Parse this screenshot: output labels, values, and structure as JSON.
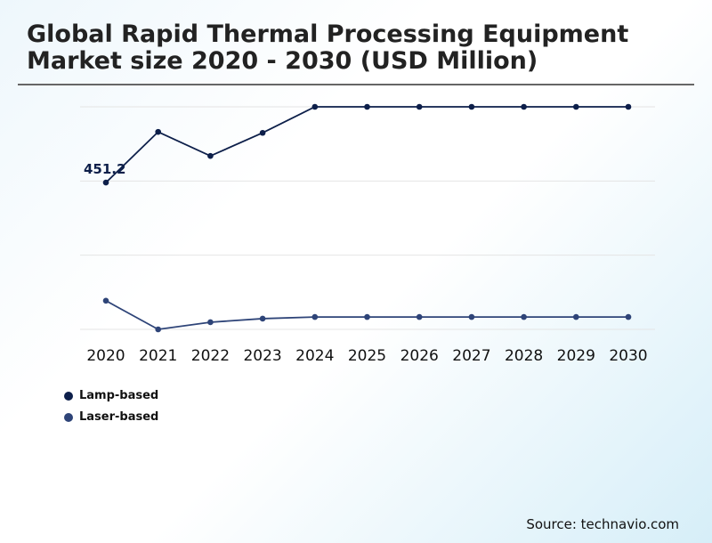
{
  "chart_data": {
    "type": "line",
    "title": "Global Rapid Thermal Processing Equipment Market size 2020 - 2030 (USD Million)",
    "x": [
      "2020",
      "2021",
      "2022",
      "2023",
      "2024",
      "2025",
      "2026",
      "2027",
      "2028",
      "2029",
      "2030"
    ],
    "ylim": [
      0,
      684
    ],
    "grid": true,
    "legend_placement": "bottom-left",
    "series": [
      {
        "name": "Lamp-based",
        "color": "#0d1f4a",
        "values": [
          451.2,
          607,
          533,
          604,
          684,
          684,
          684,
          684,
          684,
          684,
          684
        ]
      },
      {
        "name": "Laser-based",
        "color": "#2e4478",
        "values": [
          88,
          0,
          22,
          33,
          38,
          38,
          38,
          38,
          38,
          38,
          38
        ]
      }
    ],
    "annotations": [
      {
        "x": "2020",
        "series": "Lamp-based",
        "text": "451.2"
      }
    ]
  },
  "source": "Source: technavio.com"
}
